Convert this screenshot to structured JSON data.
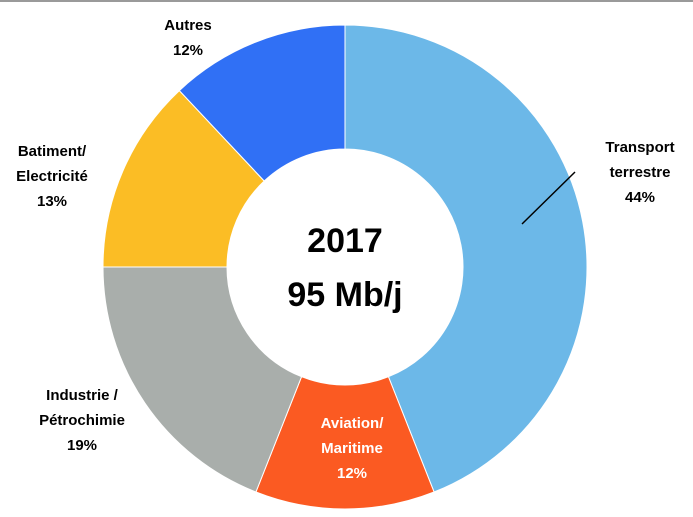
{
  "chart_data": {
    "type": "pie",
    "variant": "donut",
    "title": "",
    "center_label": {
      "line1": "2017",
      "line2": "95 Mb/j"
    },
    "slices": [
      {
        "label_lines": [
          "Transport",
          "terrestre"
        ],
        "value_text": "44%",
        "value": 44,
        "color": "#6cb8e8",
        "label_color": "#000000"
      },
      {
        "label_lines": [
          "Aviation/",
          "Maritime"
        ],
        "value_text": "12%",
        "value": 12,
        "color": "#fb5a22",
        "label_color": "#ffffff"
      },
      {
        "label_lines": [
          "Industrie  /",
          "Pétrochimie"
        ],
        "value_text": "19%",
        "value": 19,
        "color": "#a9aeab",
        "label_color": "#000000"
      },
      {
        "label_lines": [
          "Batiment/",
          "Electricité"
        ],
        "value_text": "13%",
        "value": 13,
        "color": "#fbbd25",
        "label_color": "#000000"
      },
      {
        "label_lines": [
          "Autres"
        ],
        "value_text": "12%",
        "value": 12,
        "color": "#3070f5",
        "label_color": "#000000"
      }
    ],
    "legend": "none",
    "grid": false
  }
}
